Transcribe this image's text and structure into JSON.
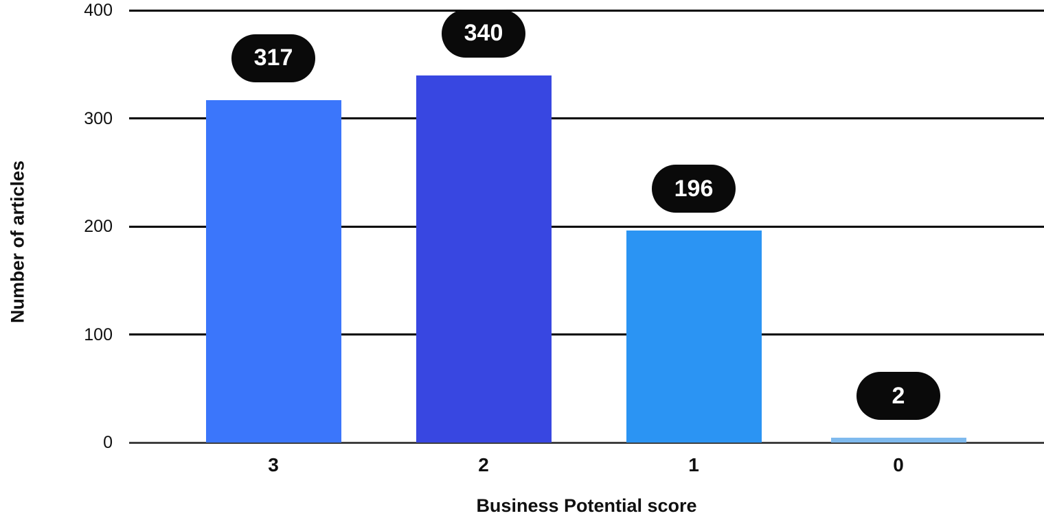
{
  "chart_data": {
    "type": "bar",
    "title": "",
    "categories": [
      "3",
      "2",
      "1",
      "0"
    ],
    "values": [
      317,
      340,
      196,
      2
    ],
    "data_labels": [
      "317",
      "340",
      "196",
      "2"
    ],
    "xlabel": "Business Potential score",
    "ylabel": "Number of articles",
    "ylim": [
      0,
      400
    ],
    "yticks": [
      0,
      100,
      200,
      300,
      400
    ],
    "grid": true,
    "legend": false,
    "bar_colors": [
      "#3B76FB",
      "#3847E1",
      "#2B94F3",
      "#7FBAEE"
    ],
    "badge": {
      "bg": "#0A0A0A",
      "text_color": "#FFFFFF"
    },
    "gridline_color": "#000000",
    "baseline_color": "#3F3F3F",
    "text_color": "#101010"
  }
}
